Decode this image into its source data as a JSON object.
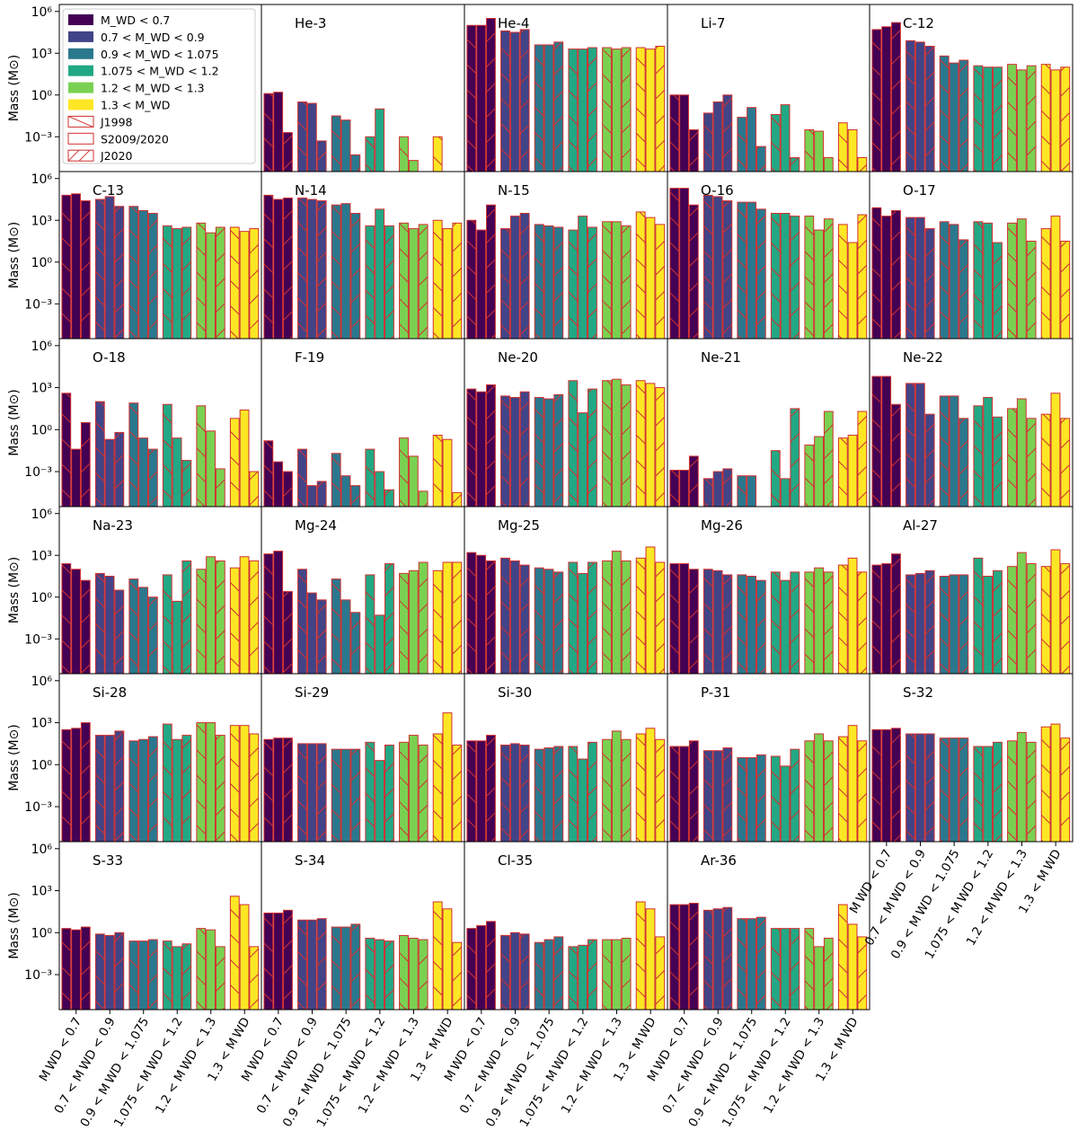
{
  "chart_data": {
    "type": "bar",
    "ylabel": "Mass (M⊙)",
    "yscale": "log",
    "ylim_exp": [
      -5.5,
      6.5
    ],
    "yticks": [
      {
        "exp": 6,
        "label": "10⁶"
      },
      {
        "exp": 3,
        "label": "10³"
      },
      {
        "exp": 0,
        "label": "10⁰"
      },
      {
        "exp": -3,
        "label": "10⁻³"
      }
    ],
    "categories": [
      "M WD < 0.7",
      "0.7 < M WD < 0.9",
      "0.9 < M WD < 1.075",
      "1.075 < M WD < 1.2",
      "1.2 < M WD < 1.3",
      "1.3 < M WD"
    ],
    "category_colors": [
      "#440154",
      "#414487",
      "#2a788e",
      "#22a884",
      "#7ad151",
      "#fde725"
    ],
    "references": [
      "J1998",
      "S2009/2020",
      "J2020"
    ],
    "legend": {
      "placement": "upper-left of first panel",
      "entries": [
        "M_WD < 0.7",
        "0.7 < M_WD < 0.9",
        "0.9 < M_WD < 1.075",
        "1.075 < M_WD < 1.2",
        "1.2 < M_WD < 1.3",
        "1.3 < M_WD",
        "J1998",
        "S2009/2020",
        "J2020"
      ]
    },
    "units_note": "values are log10 of mass in solar masses; null = no bar",
    "panels": [
      {
        "title": "He-3",
        "values": [
          [
            0.1,
            0.2,
            -2.7
          ],
          [
            -0.5,
            -0.6,
            -3.3
          ],
          [
            -1.5,
            -1.8,
            -4.3
          ],
          [
            -3.0,
            -1.0,
            null
          ],
          [
            -3.0,
            -4.7,
            null
          ],
          [
            -3.0,
            null,
            null
          ]
        ]
      },
      {
        "title": "He-4",
        "values": [
          [
            5.0,
            5.0,
            5.5
          ],
          [
            4.6,
            4.5,
            4.7
          ],
          [
            3.6,
            3.6,
            3.8
          ],
          [
            3.3,
            3.3,
            3.4
          ],
          [
            3.4,
            3.3,
            3.4
          ],
          [
            3.4,
            3.3,
            3.5
          ]
        ]
      },
      {
        "title": "Li-7",
        "values": [
          [
            0.0,
            0.0,
            -2.5
          ],
          [
            -1.3,
            -0.5,
            0.0
          ],
          [
            -1.6,
            -0.9,
            -3.7
          ],
          [
            -1.4,
            -0.7,
            -4.5
          ],
          [
            -2.5,
            -2.6,
            -4.5
          ],
          [
            -2.0,
            -2.5,
            -4.5
          ]
        ]
      },
      {
        "title": "C-12",
        "values": [
          [
            4.7,
            4.9,
            5.2
          ],
          [
            3.9,
            3.8,
            3.5
          ],
          [
            2.8,
            2.3,
            2.5
          ],
          [
            2.1,
            2.0,
            2.0
          ],
          [
            2.2,
            1.8,
            2.1
          ],
          [
            2.2,
            1.8,
            2.0
          ]
        ]
      },
      {
        "title": "C-13",
        "values": [
          [
            4.8,
            4.9,
            4.4
          ],
          [
            4.5,
            4.7,
            4.0
          ],
          [
            4.0,
            3.7,
            3.5
          ],
          [
            2.6,
            2.4,
            2.5
          ],
          [
            2.8,
            2.1,
            2.5
          ],
          [
            2.5,
            2.2,
            2.4
          ]
        ]
      },
      {
        "title": "N-14",
        "values": [
          [
            4.8,
            4.5,
            4.6
          ],
          [
            4.6,
            4.5,
            4.4
          ],
          [
            4.1,
            4.2,
            3.5
          ],
          [
            2.6,
            3.8,
            2.6
          ],
          [
            2.8,
            2.4,
            2.7
          ],
          [
            3.0,
            2.4,
            2.8
          ]
        ]
      },
      {
        "title": "N-15",
        "values": [
          [
            3.0,
            2.3,
            4.1
          ],
          [
            2.4,
            3.3,
            3.5
          ],
          [
            2.7,
            2.6,
            2.5
          ],
          [
            2.3,
            3.3,
            2.5
          ],
          [
            2.9,
            2.9,
            2.6
          ],
          [
            3.6,
            3.2,
            2.7
          ]
        ]
      },
      {
        "title": "O-16",
        "values": [
          [
            5.3,
            5.3,
            4.1
          ],
          [
            4.8,
            4.7,
            4.4
          ],
          [
            4.3,
            4.3,
            3.8
          ],
          [
            3.5,
            3.5,
            3.3
          ],
          [
            3.3,
            2.3,
            3.1
          ],
          [
            2.7,
            1.4,
            3.4
          ]
        ]
      },
      {
        "title": "O-17",
        "values": [
          [
            3.9,
            3.3,
            3.7
          ],
          [
            3.2,
            3.2,
            2.4
          ],
          [
            2.9,
            2.7,
            1.6
          ],
          [
            2.9,
            2.8,
            1.4
          ],
          [
            2.8,
            3.1,
            1.5
          ],
          [
            2.4,
            3.3,
            1.5
          ]
        ]
      },
      {
        "title": "O-18",
        "values": [
          [
            2.6,
            -1.4,
            0.5
          ],
          [
            2.0,
            -0.7,
            -0.2
          ],
          [
            1.9,
            -0.6,
            -1.4
          ],
          [
            1.8,
            -0.6,
            -2.2
          ],
          [
            1.7,
            -0.1,
            -2.8
          ],
          [
            0.8,
            1.4,
            -3.0
          ]
        ]
      },
      {
        "title": "F-19",
        "values": [
          [
            -0.8,
            -2.3,
            -3.0
          ],
          [
            -1.4,
            -4.0,
            -3.7
          ],
          [
            -1.7,
            -3.3,
            -4.0
          ],
          [
            -1.4,
            -3.0,
            -4.3
          ],
          [
            -0.6,
            -1.9,
            -4.4
          ],
          [
            -0.4,
            -0.7,
            -4.5
          ]
        ]
      },
      {
        "title": "Ne-20",
        "values": [
          [
            2.9,
            2.7,
            3.2
          ],
          [
            2.4,
            2.3,
            2.7
          ],
          [
            2.3,
            2.2,
            2.5
          ],
          [
            3.5,
            1.2,
            2.9
          ],
          [
            3.5,
            3.6,
            3.2
          ],
          [
            3.5,
            3.3,
            3.0
          ]
        ]
      },
      {
        "title": "Ne-21",
        "values": [
          [
            -2.9,
            -2.9,
            -1.9
          ],
          [
            -3.5,
            -3.0,
            -2.8
          ],
          [
            -3.3,
            -3.3,
            null
          ],
          [
            -1.5,
            -3.5,
            1.5
          ],
          [
            -1.1,
            -0.5,
            1.3
          ],
          [
            -0.6,
            -0.4,
            1.3
          ]
        ]
      },
      {
        "title": "Ne-22",
        "values": [
          [
            3.8,
            3.8,
            1.8
          ],
          [
            3.3,
            3.3,
            1.1
          ],
          [
            2.4,
            2.4,
            0.8
          ],
          [
            1.7,
            2.3,
            0.9
          ],
          [
            1.5,
            2.2,
            0.8
          ],
          [
            1.1,
            2.6,
            0.8
          ]
        ]
      },
      {
        "title": "Na-23",
        "values": [
          [
            2.4,
            2.0,
            1.2
          ],
          [
            1.7,
            1.5,
            0.5
          ],
          [
            1.3,
            0.7,
            0.0
          ],
          [
            1.6,
            -0.3,
            2.6
          ],
          [
            2.0,
            2.9,
            2.6
          ],
          [
            2.1,
            2.9,
            2.6
          ]
        ]
      },
      {
        "title": "Mg-24",
        "values": [
          [
            3.1,
            3.3,
            0.4
          ],
          [
            2.0,
            0.3,
            -0.2
          ],
          [
            1.3,
            -0.2,
            -1.1
          ],
          [
            1.6,
            -1.3,
            2.4
          ],
          [
            1.7,
            1.9,
            2.5
          ],
          [
            1.9,
            2.5,
            2.5
          ]
        ]
      },
      {
        "title": "Mg-25",
        "values": [
          [
            3.2,
            3.0,
            2.6
          ],
          [
            2.8,
            2.6,
            2.3
          ],
          [
            2.1,
            2.0,
            1.8
          ],
          [
            2.5,
            1.7,
            2.5
          ],
          [
            2.6,
            3.3,
            2.6
          ],
          [
            2.8,
            3.6,
            2.5
          ]
        ]
      },
      {
        "title": "Mg-26",
        "values": [
          [
            2.4,
            2.4,
            2.0
          ],
          [
            2.0,
            1.9,
            1.6
          ],
          [
            1.6,
            1.5,
            1.2
          ],
          [
            1.8,
            1.2,
            1.8
          ],
          [
            1.8,
            2.1,
            1.8
          ],
          [
            2.3,
            2.8,
            1.8
          ]
        ]
      },
      {
        "title": "Al-27",
        "values": [
          [
            2.3,
            2.4,
            3.1
          ],
          [
            1.6,
            1.7,
            1.9
          ],
          [
            1.5,
            1.6,
            1.6
          ],
          [
            2.8,
            1.5,
            1.9
          ],
          [
            2.2,
            3.2,
            2.4
          ],
          [
            2.2,
            3.4,
            2.4
          ]
        ]
      },
      {
        "title": "Si-28",
        "values": [
          [
            2.5,
            2.6,
            3.0
          ],
          [
            2.1,
            2.1,
            2.4
          ],
          [
            1.7,
            1.8,
            2.0
          ],
          [
            2.9,
            1.8,
            2.1
          ],
          [
            3.0,
            3.0,
            2.1
          ],
          [
            2.8,
            2.8,
            2.2
          ]
        ]
      },
      {
        "title": "Si-29",
        "values": [
          [
            1.8,
            1.9,
            1.9
          ],
          [
            1.5,
            1.5,
            1.5
          ],
          [
            1.1,
            1.1,
            1.1
          ],
          [
            1.6,
            0.3,
            1.4
          ],
          [
            1.6,
            2.1,
            1.4
          ],
          [
            2.2,
            3.7,
            1.4
          ]
        ]
      },
      {
        "title": "Si-30",
        "values": [
          [
            1.7,
            1.7,
            2.1
          ],
          [
            1.4,
            1.5,
            1.4
          ],
          [
            1.1,
            1.2,
            1.3
          ],
          [
            1.3,
            0.4,
            1.6
          ],
          [
            1.8,
            2.4,
            1.8
          ],
          [
            2.2,
            2.6,
            1.8
          ]
        ]
      },
      {
        "title": "P-31",
        "values": [
          [
            1.3,
            1.3,
            1.7
          ],
          [
            1.0,
            1.0,
            1.2
          ],
          [
            0.5,
            0.5,
            0.7
          ],
          [
            0.6,
            -0.1,
            1.1
          ],
          [
            1.7,
            2.2,
            1.7
          ],
          [
            2.0,
            2.8,
            1.7
          ]
        ]
      },
      {
        "title": "S-32",
        "values": [
          [
            2.5,
            2.5,
            2.6
          ],
          [
            2.2,
            2.2,
            2.2
          ],
          [
            1.9,
            1.9,
            1.9
          ],
          [
            1.3,
            1.3,
            1.6
          ],
          [
            1.7,
            2.3,
            1.6
          ],
          [
            2.7,
            2.9,
            1.9
          ]
        ]
      },
      {
        "title": "S-33",
        "values": [
          [
            0.3,
            0.2,
            0.4
          ],
          [
            -0.1,
            -0.2,
            0.0
          ],
          [
            -0.6,
            -0.6,
            -0.5
          ],
          [
            -0.6,
            -1.0,
            -0.8
          ],
          [
            0.3,
            0.2,
            -1.0
          ],
          [
            2.6,
            2.0,
            -1.0
          ]
        ]
      },
      {
        "title": "S-34",
        "values": [
          [
            1.4,
            1.4,
            1.6
          ],
          [
            0.9,
            0.9,
            1.0
          ],
          [
            0.4,
            0.4,
            0.6
          ],
          [
            -0.4,
            -0.5,
            -0.6
          ],
          [
            -0.2,
            -0.4,
            -0.5
          ],
          [
            2.2,
            1.7,
            -0.7
          ]
        ]
      },
      {
        "title": "Cl-35",
        "values": [
          [
            0.3,
            0.5,
            0.8
          ],
          [
            -0.2,
            0.0,
            -0.1
          ],
          [
            -0.7,
            -0.5,
            -0.3
          ],
          [
            -1.0,
            -0.9,
            -0.5
          ],
          [
            -0.5,
            -0.5,
            -0.4
          ],
          [
            2.2,
            1.7,
            -0.3
          ]
        ]
      },
      {
        "title": "Ar-36",
        "values": [
          [
            2.0,
            2.0,
            2.1
          ],
          [
            1.6,
            1.7,
            1.8
          ],
          [
            1.0,
            1.0,
            1.1
          ],
          [
            0.3,
            0.3,
            0.3
          ],
          [
            0.3,
            -1.0,
            -0.4
          ],
          [
            2.0,
            0.6,
            -0.3
          ]
        ]
      }
    ]
  }
}
